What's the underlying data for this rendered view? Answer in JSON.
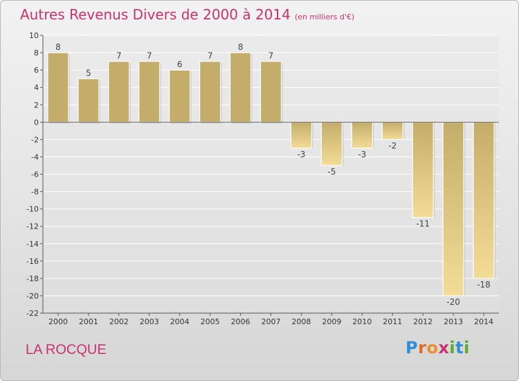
{
  "title": "Autres Revenus Divers de 2000 à 2014",
  "unit": "(en milliers d'€)",
  "commune": "LA ROCQUE",
  "logo": {
    "text": "Proxiti",
    "letter_colors": [
      "#2f8fd6",
      "#e06a1e",
      "#e8902a",
      "#c8326e",
      "#5aab2e",
      "#2f8fd6",
      "#5aab2e"
    ]
  },
  "colors": {
    "title": "#c8326e",
    "bar_dark": "#c4ad6a",
    "bar_light": "#f3dc96",
    "axis": "#555555",
    "grid": "#ffffff"
  },
  "chart_data": {
    "type": "bar",
    "categories": [
      "2000",
      "2001",
      "2002",
      "2003",
      "2004",
      "2005",
      "2006",
      "2007",
      "2008",
      "2009",
      "2010",
      "2011",
      "2012",
      "2013",
      "2014"
    ],
    "values": [
      8,
      5,
      7,
      7,
      6,
      7,
      8,
      7,
      -3,
      -5,
      -3,
      -2,
      -11,
      -20,
      -18
    ],
    "data_labels": [
      "8",
      "5",
      "7",
      "7",
      "6",
      "7",
      "8",
      "7",
      "-3",
      "-5",
      "-3",
      "-2",
      "-11",
      "-20",
      "-18"
    ],
    "yticks": [
      10,
      8,
      6,
      4,
      2,
      0,
      -2,
      -4,
      -6,
      -8,
      -10,
      -12,
      -14,
      -16,
      -18,
      -20,
      -22
    ],
    "ylim": [
      -22,
      10
    ],
    "grid": true,
    "xlabel": "",
    "ylabel": ""
  }
}
